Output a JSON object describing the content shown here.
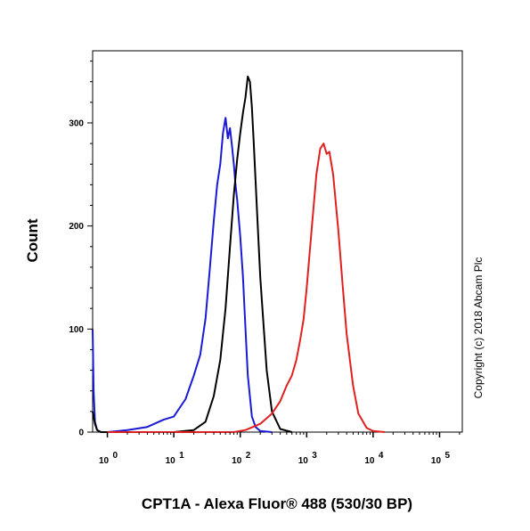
{
  "chart_data": {
    "type": "line",
    "title": "",
    "xlabel": "CPT1A - Alexa Fluor® 488 (530/30 BP)",
    "ylabel": "Count",
    "x_scale": "log",
    "xlim": [
      0.6,
      220000
    ],
    "ylim": [
      0,
      370
    ],
    "y_ticks": [
      {
        "value": 0,
        "label": "0"
      },
      {
        "value": 100,
        "label": "100"
      },
      {
        "value": 200,
        "label": "200"
      },
      {
        "value": 300,
        "label": "300"
      }
    ],
    "x_ticks": [
      {
        "value": 1,
        "base": "10",
        "exp": "0"
      },
      {
        "value": 10,
        "base": "10",
        "exp": "1"
      },
      {
        "value": 100,
        "base": "10",
        "exp": "2"
      },
      {
        "value": 1000,
        "base": "10",
        "exp": "3"
      },
      {
        "value": 10000,
        "base": "10",
        "exp": "4"
      },
      {
        "value": 100000,
        "base": "10",
        "exp": "5"
      }
    ],
    "grid": false,
    "legend": null,
    "annotation": "Copyright (c) 2018 Abcam Plc",
    "series": [
      {
        "color": "#1a1ad6",
        "x": [
          0.6,
          0.62,
          0.65,
          0.7,
          0.8,
          1,
          2,
          4,
          7,
          10,
          15,
          20,
          25,
          30,
          35,
          40,
          45,
          50,
          55,
          60,
          65,
          70,
          75,
          80,
          85,
          90,
          100,
          110,
          120,
          130,
          150,
          170,
          200,
          300
        ],
        "y": [
          100,
          40,
          10,
          2,
          0,
          0,
          2,
          5,
          12,
          15,
          32,
          55,
          75,
          110,
          160,
          205,
          240,
          260,
          290,
          305,
          285,
          295,
          278,
          260,
          240,
          225,
          190,
          150,
          100,
          55,
          15,
          5,
          1,
          0
        ]
      },
      {
        "color": "#000000",
        "x": [
          0.6,
          0.65,
          0.7,
          0.8,
          1,
          3,
          10,
          20,
          30,
          40,
          50,
          60,
          70,
          80,
          90,
          100,
          110,
          120,
          130,
          140,
          150,
          160,
          180,
          200,
          250,
          300,
          400,
          600
        ],
        "y": [
          20,
          8,
          2,
          0,
          0,
          0,
          0,
          2,
          10,
          35,
          70,
          120,
          180,
          230,
          265,
          290,
          310,
          325,
          345,
          340,
          315,
          280,
          210,
          150,
          60,
          20,
          3,
          0
        ]
      },
      {
        "color": "#e02020",
        "x": [
          1,
          10,
          50,
          80,
          120,
          200,
          300,
          400,
          500,
          600,
          700,
          800,
          900,
          1000,
          1200,
          1400,
          1600,
          1800,
          2000,
          2200,
          2500,
          3000,
          3500,
          4000,
          5000,
          6000,
          8000,
          10000,
          15000
        ],
        "y": [
          0,
          0,
          0,
          0,
          2,
          8,
          18,
          30,
          45,
          55,
          70,
          90,
          110,
          140,
          200,
          250,
          275,
          280,
          270,
          272,
          250,
          195,
          140,
          95,
          45,
          18,
          4,
          1,
          0
        ]
      }
    ]
  }
}
